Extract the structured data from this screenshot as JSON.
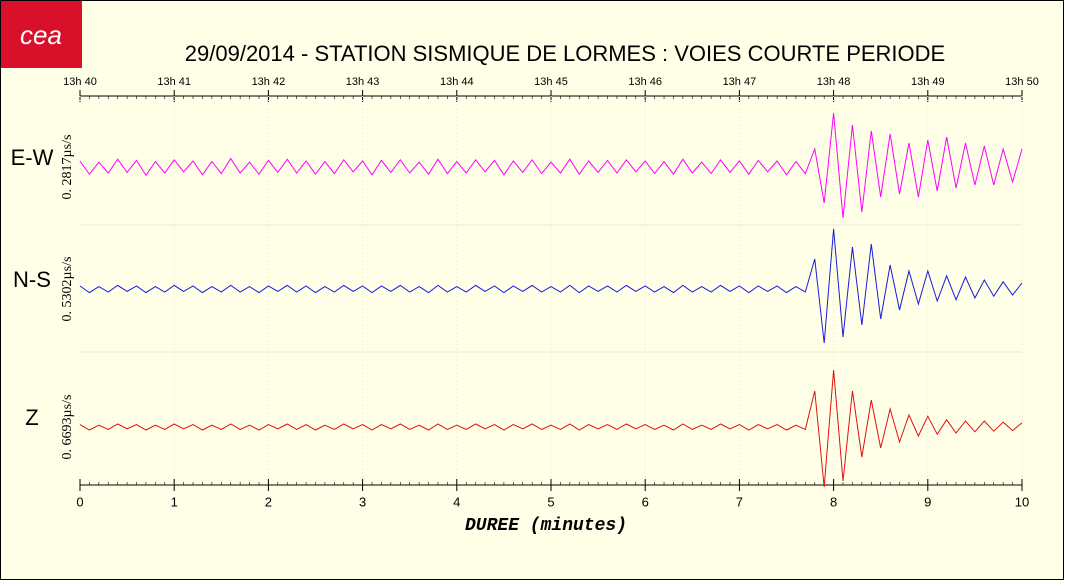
{
  "chart_data": {
    "type": "line",
    "logo": "cea",
    "title": "29/09/2014  -  STATION SISMIQUE DE LORMES : VOIES COURTE PERIODE",
    "xlabel": "DUREE (minutes)",
    "xlim": [
      0,
      10
    ],
    "xticks": [
      0,
      1,
      2,
      3,
      4,
      5,
      6,
      7,
      8,
      9,
      10
    ],
    "top_ticks": [
      {
        "value": 0,
        "label": "13h 40"
      },
      {
        "value": 1,
        "label": "13h 41"
      },
      {
        "value": 2,
        "label": "13h 42"
      },
      {
        "value": 3,
        "label": "13h 43"
      },
      {
        "value": 4,
        "label": "13h 44"
      },
      {
        "value": 5,
        "label": "13h 45"
      },
      {
        "value": 6,
        "label": "13h 46"
      },
      {
        "value": 7,
        "label": "13h 47"
      },
      {
        "value": 8,
        "label": "13h 48"
      },
      {
        "value": 9,
        "label": "13h 49"
      },
      {
        "value": 10,
        "label": "13h 50"
      }
    ],
    "ylim": [
      -1,
      1
    ],
    "grid": true,
    "x": [
      0,
      0.1,
      0.2,
      0.3,
      0.4,
      0.5,
      0.6,
      0.7,
      0.8,
      0.9,
      1,
      1.1,
      1.2,
      1.3,
      1.4,
      1.5,
      1.6,
      1.7,
      1.8,
      1.9,
      2,
      2.1,
      2.2,
      2.3,
      2.4,
      2.5,
      2.6,
      2.7,
      2.8,
      2.9,
      3,
      3.1,
      3.2,
      3.3,
      3.4,
      3.5,
      3.6,
      3.7,
      3.8,
      3.9,
      4,
      4.1,
      4.2,
      4.3,
      4.4,
      4.5,
      4.6,
      4.7,
      4.8,
      4.9,
      5,
      5.1,
      5.2,
      5.3,
      5.4,
      5.5,
      5.6,
      5.7,
      5.8,
      5.9,
      6,
      6.1,
      6.2,
      6.3,
      6.4,
      6.5,
      6.6,
      6.7,
      6.8,
      6.9,
      7,
      7.1,
      7.2,
      7.3,
      7.4,
      7.5,
      7.6,
      7.7,
      7.8,
      7.9,
      8,
      8.1,
      8.2,
      8.3,
      8.4,
      8.5,
      8.6,
      8.7,
      8.8,
      8.9,
      9,
      9.1,
      9.2,
      9.3,
      9.4,
      9.5,
      9.6,
      9.7,
      9.8,
      9.9,
      10
    ],
    "series": [
      {
        "name": "E-W",
        "scale_label": "0. 2817µs/s",
        "color": "#ff00ff",
        "values": [
          0.1,
          -0.12,
          0.08,
          -0.1,
          0.13,
          -0.09,
          0.11,
          -0.14,
          0.09,
          -0.1,
          0.12,
          -0.08,
          0.1,
          -0.13,
          0.09,
          -0.11,
          0.14,
          -0.1,
          0.08,
          -0.12,
          0.11,
          -0.09,
          0.13,
          -0.1,
          0.1,
          -0.12,
          0.09,
          -0.11,
          0.12,
          -0.08,
          0.1,
          -0.13,
          0.11,
          -0.09,
          0.12,
          -0.1,
          0.08,
          -0.12,
          0.13,
          -0.11,
          0.09,
          -0.1,
          0.12,
          -0.08,
          0.11,
          -0.13,
          0.1,
          -0.09,
          0.12,
          -0.11,
          0.08,
          -0.1,
          0.13,
          -0.12,
          0.1,
          -0.09,
          0.11,
          -0.1,
          0.12,
          -0.08,
          0.1,
          -0.11,
          0.09,
          -0.12,
          0.13,
          -0.1,
          0.08,
          -0.11,
          0.12,
          -0.09,
          0.1,
          -0.12,
          0.11,
          -0.08,
          0.1,
          -0.13,
          0.09,
          -0.11,
          0.3,
          -0.6,
          0.9,
          -0.85,
          0.7,
          -0.75,
          0.6,
          -0.5,
          0.55,
          -0.45,
          0.4,
          -0.5,
          0.45,
          -0.4,
          0.5,
          -0.35,
          0.4,
          -0.3,
          0.35,
          -0.3,
          0.3,
          -0.25,
          0.3
        ]
      },
      {
        "name": "N-S",
        "scale_label": "0. 5302µs/s",
        "color": "#1a1adc",
        "values": [
          0.05,
          -0.06,
          0.04,
          -0.05,
          0.06,
          -0.04,
          0.05,
          -0.06,
          0.04,
          -0.05,
          0.06,
          -0.04,
          0.05,
          -0.06,
          0.04,
          -0.05,
          0.06,
          -0.05,
          0.04,
          -0.06,
          0.05,
          -0.04,
          0.06,
          -0.05,
          0.05,
          -0.06,
          0.04,
          -0.05,
          0.06,
          -0.04,
          0.05,
          -0.06,
          0.05,
          -0.04,
          0.06,
          -0.05,
          0.04,
          -0.06,
          0.06,
          -0.05,
          0.04,
          -0.05,
          0.06,
          -0.04,
          0.05,
          -0.06,
          0.05,
          -0.04,
          0.06,
          -0.05,
          0.04,
          -0.05,
          0.06,
          -0.06,
          0.05,
          -0.04,
          0.05,
          -0.05,
          0.06,
          -0.04,
          0.05,
          -0.05,
          0.04,
          -0.06,
          0.06,
          -0.05,
          0.04,
          -0.05,
          0.06,
          -0.04,
          0.05,
          -0.06,
          0.05,
          -0.04,
          0.05,
          -0.06,
          0.04,
          -0.05,
          0.5,
          -0.9,
          1.0,
          -0.8,
          0.7,
          -0.6,
          0.75,
          -0.5,
          0.4,
          -0.35,
          0.3,
          -0.25,
          0.3,
          -0.2,
          0.22,
          -0.18,
          0.2,
          -0.15,
          0.15,
          -0.12,
          0.12,
          -0.1,
          0.1
        ]
      },
      {
        "name": "Z",
        "scale_label": "0. 6693µs/s",
        "color": "#e01010",
        "values": [
          0.04,
          -0.05,
          0.03,
          -0.04,
          0.05,
          -0.03,
          0.04,
          -0.05,
          0.03,
          -0.04,
          0.05,
          -0.03,
          0.04,
          -0.05,
          0.03,
          -0.04,
          0.05,
          -0.04,
          0.03,
          -0.05,
          0.04,
          -0.03,
          0.05,
          -0.04,
          0.04,
          -0.05,
          0.03,
          -0.04,
          0.05,
          -0.03,
          0.04,
          -0.05,
          0.04,
          -0.03,
          0.05,
          -0.04,
          0.03,
          -0.05,
          0.05,
          -0.04,
          0.03,
          -0.04,
          0.05,
          -0.03,
          0.04,
          -0.05,
          0.04,
          -0.03,
          0.05,
          -0.04,
          0.03,
          -0.04,
          0.05,
          -0.05,
          0.04,
          -0.03,
          0.04,
          -0.04,
          0.05,
          -0.03,
          0.04,
          -0.04,
          0.03,
          -0.05,
          0.05,
          -0.04,
          0.03,
          -0.04,
          0.05,
          -0.03,
          0.04,
          -0.05,
          0.04,
          -0.03,
          0.04,
          -0.05,
          0.03,
          -0.04,
          0.6,
          -1.0,
          0.95,
          -0.9,
          0.6,
          -0.5,
          0.45,
          -0.35,
          0.3,
          -0.25,
          0.2,
          -0.15,
          0.18,
          -0.12,
          0.12,
          -0.1,
          0.1,
          -0.08,
          0.1,
          -0.07,
          0.08,
          -0.06,
          0.07
        ]
      }
    ]
  }
}
